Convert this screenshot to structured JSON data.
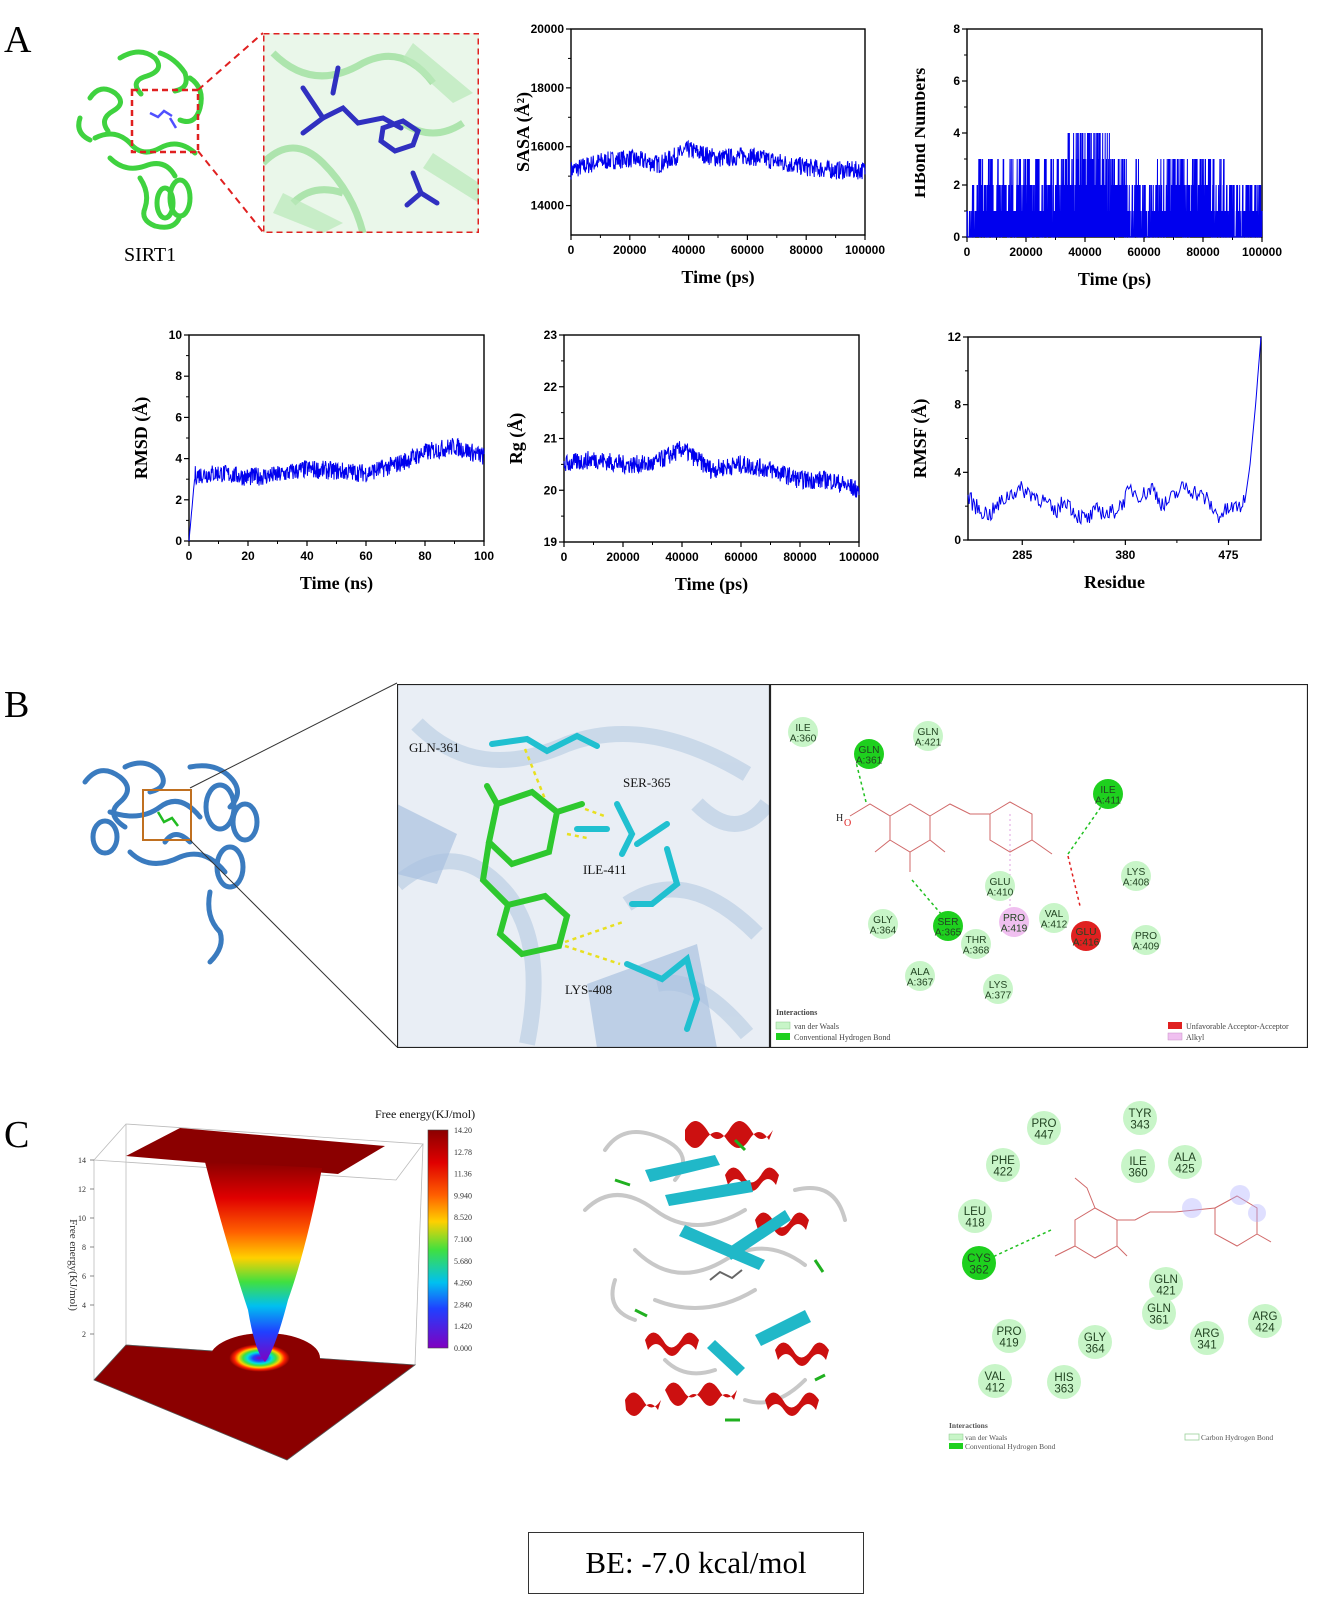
{
  "panels": {
    "a": "A",
    "b": "B",
    "c": "C"
  },
  "panel_a": {
    "protein_label": "SIRT1"
  },
  "panel_b": {
    "residue_labels": [
      "GLN-361",
      "SER-365",
      "ILE-411",
      "LYS-408"
    ],
    "diagram_nodes": [
      {
        "t1": "ILE",
        "t2": "A:360",
        "kind": "vdw"
      },
      {
        "t1": "GLN",
        "t2": "A:361",
        "kind": "hbond"
      },
      {
        "t1": "GLN",
        "t2": "A:421",
        "kind": "vdw"
      },
      {
        "t1": "ILE",
        "t2": "A:411",
        "kind": "hbond"
      },
      {
        "t1": "LYS",
        "t2": "A:408",
        "kind": "vdw"
      },
      {
        "t1": "GLU",
        "t2": "A:410",
        "kind": "vdw"
      },
      {
        "t1": "GLY",
        "t2": "A:364",
        "kind": "vdw"
      },
      {
        "t1": "SER",
        "t2": "A:365",
        "kind": "hbond"
      },
      {
        "t1": "PRO",
        "t2": "A:419",
        "kind": "alkyl"
      },
      {
        "t1": "VAL",
        "t2": "A:412",
        "kind": "vdw"
      },
      {
        "t1": "GLU",
        "t2": "A:416",
        "kind": "unfav"
      },
      {
        "t1": "PRO",
        "t2": "A:409",
        "kind": "vdw"
      },
      {
        "t1": "THR",
        "t2": "A:368",
        "kind": "vdw"
      },
      {
        "t1": "ALA",
        "t2": "A:367",
        "kind": "vdw"
      },
      {
        "t1": "LYS",
        "t2": "A:377",
        "kind": "vdw"
      }
    ],
    "legend_title": "Interactions",
    "legend": [
      "van der Waals",
      "Conventional Hydrogen Bond",
      "Unfavorable Acceptor-Acceptor",
      "Alkyl"
    ],
    "atom_h": "H",
    "atom_o": "O"
  },
  "panel_c": {
    "colorbar_title": "Free energy(KJ/mol)",
    "colorbar_ticks": [
      "14.20",
      "12.78",
      "11.36",
      "9.940",
      "8.520",
      "7.100",
      "5.680",
      "4.260",
      "2.840",
      "1.420",
      "0.000"
    ],
    "zaxis_label": "Free energy(KJ/mol)",
    "zaxis_ticks": [
      "14",
      "12",
      "10",
      "8",
      "6",
      "4",
      "2"
    ],
    "diagram_nodes": [
      {
        "t1": "PRO",
        "t2": "447",
        "kind": "vdw"
      },
      {
        "t1": "TYR",
        "t2": "343",
        "kind": "vdw"
      },
      {
        "t1": "PHE",
        "t2": "422",
        "kind": "vdw"
      },
      {
        "t1": "ILE",
        "t2": "360",
        "kind": "vdw"
      },
      {
        "t1": "ALA",
        "t2": "425",
        "kind": "vdw"
      },
      {
        "t1": "LEU",
        "t2": "418",
        "kind": "vdw"
      },
      {
        "t1": "CYS",
        "t2": "362",
        "kind": "hbond"
      },
      {
        "t1": "GLN",
        "t2": "421",
        "kind": "vdw"
      },
      {
        "t1": "GLN",
        "t2": "361",
        "kind": "vdw"
      },
      {
        "t1": "ARG",
        "t2": "424",
        "kind": "vdw"
      },
      {
        "t1": "PRO",
        "t2": "419",
        "kind": "vdw"
      },
      {
        "t1": "GLY",
        "t2": "364",
        "kind": "vdw"
      },
      {
        "t1": "ARG",
        "t2": "341",
        "kind": "vdw"
      },
      {
        "t1": "VAL",
        "t2": "412",
        "kind": "vdw"
      },
      {
        "t1": "HIS",
        "t2": "363",
        "kind": "vdw"
      }
    ],
    "legend_title": "Interactions",
    "legend": [
      "van der Waals",
      "Conventional Hydrogen Bond",
      "Carbon Hydrogen Bond"
    ],
    "be_text": "BE:  -7.0 kcal/mol"
  },
  "colors": {
    "line_blue": "#0000ee",
    "vdw": "#c8f5c8",
    "hbond": "#1ed01e",
    "unfav": "#e02020",
    "alkyl": "#f0c0f0"
  },
  "chart_data": [
    {
      "type": "line",
      "title": "",
      "xlabel": "Time (ps)",
      "ylabel": "SASA (Å²)",
      "xlim": [
        0,
        100000
      ],
      "ylim": [
        13000,
        20000
      ],
      "xticks": [
        "0",
        "20000",
        "40000",
        "60000",
        "80000",
        "100000"
      ],
      "yticks": [
        "14000",
        "16000",
        "18000",
        "20000"
      ],
      "x": [
        0,
        10000,
        20000,
        30000,
        40000,
        50000,
        60000,
        70000,
        80000,
        90000,
        100000
      ],
      "y": [
        15200,
        15500,
        15600,
        15400,
        15900,
        15600,
        15700,
        15500,
        15300,
        15200,
        15200
      ],
      "grid": false
    },
    {
      "type": "line",
      "title": "",
      "xlabel": "Time (ps)",
      "ylabel": "HBond Numbers",
      "xlim": [
        0,
        100000
      ],
      "ylim": [
        0,
        8
      ],
      "xticks": [
        "0",
        "20000",
        "40000",
        "60000",
        "80000",
        "100000"
      ],
      "yticks": [
        "0",
        "2",
        "4",
        "6",
        "8"
      ],
      "x": [
        0,
        10000,
        20000,
        30000,
        40000,
        45000,
        50000,
        60000,
        70000,
        80000,
        90000,
        100000
      ],
      "y": [
        1,
        2,
        2,
        2,
        3,
        3,
        2,
        1,
        2,
        2,
        1,
        1
      ],
      "grid": false
    },
    {
      "type": "line",
      "title": "",
      "xlabel": "Time (ns)",
      "ylabel": "RMSD (Å)",
      "xlim": [
        0,
        100
      ],
      "ylim": [
        0,
        10
      ],
      "xticks": [
        "0",
        "20",
        "40",
        "60",
        "80",
        "100"
      ],
      "yticks": [
        "0",
        "2",
        "4",
        "6",
        "8",
        "10"
      ],
      "x": [
        0,
        2,
        10,
        20,
        30,
        40,
        50,
        60,
        70,
        80,
        90,
        100
      ],
      "y": [
        0,
        3.2,
        3.3,
        3.1,
        3.2,
        3.5,
        3.4,
        3.3,
        3.7,
        4.3,
        4.6,
        4.1
      ],
      "grid": false
    },
    {
      "type": "line",
      "title": "",
      "xlabel": "Time (ps)",
      "ylabel": "Rg (Å)",
      "xlim": [
        0,
        100000
      ],
      "ylim": [
        19,
        23
      ],
      "xticks": [
        "0",
        "20000",
        "40000",
        "60000",
        "80000",
        "100000"
      ],
      "yticks": [
        "19",
        "20",
        "21",
        "22",
        "23"
      ],
      "x": [
        0,
        10000,
        20000,
        30000,
        40000,
        50000,
        60000,
        70000,
        80000,
        90000,
        100000
      ],
      "y": [
        20.5,
        20.6,
        20.5,
        20.5,
        20.8,
        20.4,
        20.5,
        20.4,
        20.2,
        20.2,
        20.0
      ],
      "grid": false
    },
    {
      "type": "line",
      "title": "",
      "xlabel": "Residue",
      "ylabel": "RMSF (Å)",
      "xlim": [
        235,
        505
      ],
      "ylim": [
        0,
        12
      ],
      "xticks": [
        "285",
        "380",
        "475"
      ],
      "yticks": [
        "0",
        "4",
        "8",
        "12"
      ],
      "x": [
        235,
        245,
        255,
        265,
        275,
        285,
        295,
        305,
        315,
        325,
        335,
        345,
        355,
        365,
        375,
        385,
        395,
        405,
        415,
        425,
        435,
        445,
        455,
        465,
        475,
        485,
        490,
        495,
        500,
        505
      ],
      "y": [
        2.5,
        1.8,
        1.5,
        2.2,
        2.8,
        3.0,
        2.7,
        2.3,
        1.6,
        2.4,
        1.5,
        1.2,
        1.8,
        1.5,
        2.0,
        3.0,
        2.6,
        3.1,
        2.0,
        2.6,
        3.2,
        2.8,
        2.4,
        1.4,
        1.8,
        2.0,
        2.2,
        4.5,
        8,
        12
      ],
      "grid": false
    }
  ]
}
